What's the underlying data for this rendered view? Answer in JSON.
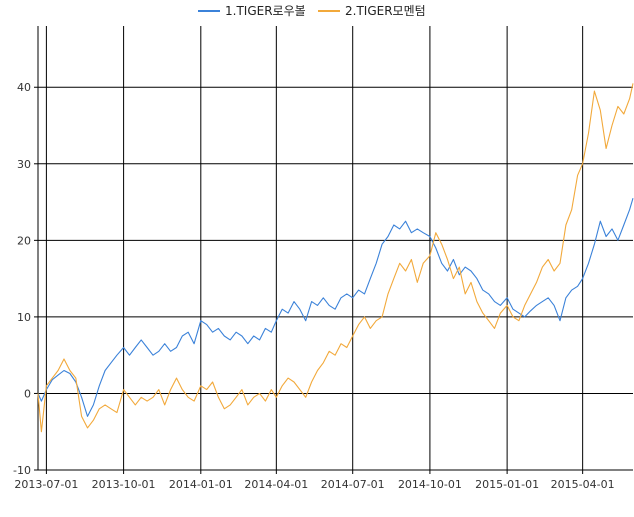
{
  "chart_data": {
    "type": "line",
    "title": "",
    "xlabel": "",
    "ylabel": "",
    "x_ticks": [
      "2013-07-01",
      "2013-10-01",
      "2014-01-01",
      "2014-04-01",
      "2014-07-01",
      "2014-10-01",
      "2015-01-01",
      "2015-04-01"
    ],
    "y_ticks": [
      -10,
      0,
      10,
      20,
      30,
      40
    ],
    "xlim": [
      "2013-06-21",
      "2015-05-31"
    ],
    "ylim": [
      -10,
      48
    ],
    "grid": true,
    "legend_position": "top",
    "series": [
      {
        "name": "1.TIGER로우볼",
        "color": "#3b82d9",
        "points": [
          [
            "2013-06-21",
            0.0
          ],
          [
            "2013-06-25",
            -1.0
          ],
          [
            "2013-07-01",
            0.5
          ],
          [
            "2013-07-08",
            1.8
          ],
          [
            "2013-07-15",
            2.4
          ],
          [
            "2013-07-22",
            3.0
          ],
          [
            "2013-07-29",
            2.6
          ],
          [
            "2013-08-05",
            1.5
          ],
          [
            "2013-08-12",
            -0.5
          ],
          [
            "2013-08-19",
            -3.0
          ],
          [
            "2013-08-26",
            -1.5
          ],
          [
            "2013-09-02",
            1.0
          ],
          [
            "2013-09-09",
            3.0
          ],
          [
            "2013-09-16",
            4.0
          ],
          [
            "2013-09-23",
            5.0
          ],
          [
            "2013-10-01",
            6.0
          ],
          [
            "2013-10-08",
            5.0
          ],
          [
            "2013-10-15",
            6.0
          ],
          [
            "2013-10-22",
            7.0
          ],
          [
            "2013-10-29",
            6.0
          ],
          [
            "2013-11-05",
            5.0
          ],
          [
            "2013-11-12",
            5.5
          ],
          [
            "2013-11-19",
            6.5
          ],
          [
            "2013-11-26",
            5.5
          ],
          [
            "2013-12-03",
            6.0
          ],
          [
            "2013-12-10",
            7.5
          ],
          [
            "2013-12-17",
            8.0
          ],
          [
            "2013-12-24",
            6.5
          ],
          [
            "2014-01-01",
            9.5
          ],
          [
            "2014-01-08",
            9.0
          ],
          [
            "2014-01-15",
            8.0
          ],
          [
            "2014-01-22",
            8.5
          ],
          [
            "2014-01-29",
            7.5
          ],
          [
            "2014-02-05",
            7.0
          ],
          [
            "2014-02-12",
            8.0
          ],
          [
            "2014-02-19",
            7.5
          ],
          [
            "2014-02-26",
            6.5
          ],
          [
            "2014-03-05",
            7.5
          ],
          [
            "2014-03-12",
            7.0
          ],
          [
            "2014-03-19",
            8.5
          ],
          [
            "2014-03-26",
            8.0
          ],
          [
            "2014-04-01",
            9.5
          ],
          [
            "2014-04-08",
            11.0
          ],
          [
            "2014-04-15",
            10.5
          ],
          [
            "2014-04-22",
            12.0
          ],
          [
            "2014-04-29",
            11.0
          ],
          [
            "2014-05-06",
            9.5
          ],
          [
            "2014-05-13",
            12.0
          ],
          [
            "2014-05-20",
            11.5
          ],
          [
            "2014-05-27",
            12.5
          ],
          [
            "2014-06-03",
            11.5
          ],
          [
            "2014-06-10",
            11.0
          ],
          [
            "2014-06-17",
            12.5
          ],
          [
            "2014-06-24",
            13.0
          ],
          [
            "2014-07-01",
            12.5
          ],
          [
            "2014-07-08",
            13.5
          ],
          [
            "2014-07-15",
            13.0
          ],
          [
            "2014-07-22",
            15.0
          ],
          [
            "2014-07-29",
            17.0
          ],
          [
            "2014-08-05",
            19.5
          ],
          [
            "2014-08-12",
            20.5
          ],
          [
            "2014-08-19",
            22.0
          ],
          [
            "2014-08-26",
            21.5
          ],
          [
            "2014-09-02",
            22.5
          ],
          [
            "2014-09-09",
            21.0
          ],
          [
            "2014-09-16",
            21.5
          ],
          [
            "2014-09-23",
            21.0
          ],
          [
            "2014-10-01",
            20.5
          ],
          [
            "2014-10-08",
            19.0
          ],
          [
            "2014-10-15",
            17.0
          ],
          [
            "2014-10-22",
            16.0
          ],
          [
            "2014-10-29",
            17.5
          ],
          [
            "2014-11-05",
            15.5
          ],
          [
            "2014-11-12",
            16.5
          ],
          [
            "2014-11-19",
            16.0
          ],
          [
            "2014-11-26",
            15.0
          ],
          [
            "2014-12-03",
            13.5
          ],
          [
            "2014-12-10",
            13.0
          ],
          [
            "2014-12-17",
            12.0
          ],
          [
            "2014-12-24",
            11.5
          ],
          [
            "2015-01-01",
            12.5
          ],
          [
            "2015-01-08",
            11.0
          ],
          [
            "2015-01-15",
            10.5
          ],
          [
            "2015-01-22",
            10.0
          ],
          [
            "2015-01-29",
            10.8
          ],
          [
            "2015-02-05",
            11.5
          ],
          [
            "2015-02-12",
            12.0
          ],
          [
            "2015-02-19",
            12.5
          ],
          [
            "2015-02-26",
            11.5
          ],
          [
            "2015-03-05",
            9.5
          ],
          [
            "2015-03-12",
            12.5
          ],
          [
            "2015-03-19",
            13.5
          ],
          [
            "2015-03-26",
            14.0
          ],
          [
            "2015-04-01",
            15.0
          ],
          [
            "2015-04-08",
            17.0
          ],
          [
            "2015-04-15",
            19.5
          ],
          [
            "2015-04-22",
            22.5
          ],
          [
            "2015-04-29",
            20.5
          ],
          [
            "2015-05-06",
            21.5
          ],
          [
            "2015-05-13",
            20.0
          ],
          [
            "2015-05-20",
            22.0
          ],
          [
            "2015-05-27",
            24.0
          ],
          [
            "2015-05-31",
            25.5
          ]
        ]
      },
      {
        "name": "2.TIGER모멘텀",
        "color": "#f2a93b",
        "points": [
          [
            "2013-06-21",
            0.0
          ],
          [
            "2013-06-25",
            -5.0
          ],
          [
            "2013-07-01",
            1.0
          ],
          [
            "2013-07-08",
            2.0
          ],
          [
            "2013-07-15",
            3.0
          ],
          [
            "2013-07-22",
            4.5
          ],
          [
            "2013-07-29",
            3.0
          ],
          [
            "2013-08-05",
            2.0
          ],
          [
            "2013-08-12",
            -3.0
          ],
          [
            "2013-08-19",
            -4.5
          ],
          [
            "2013-08-26",
            -3.5
          ],
          [
            "2013-09-02",
            -2.0
          ],
          [
            "2013-09-09",
            -1.5
          ],
          [
            "2013-09-16",
            -2.0
          ],
          [
            "2013-09-23",
            -2.5
          ],
          [
            "2013-10-01",
            0.5
          ],
          [
            "2013-10-08",
            -0.5
          ],
          [
            "2013-10-15",
            -1.5
          ],
          [
            "2013-10-22",
            -0.5
          ],
          [
            "2013-10-29",
            -1.0
          ],
          [
            "2013-11-05",
            -0.5
          ],
          [
            "2013-11-12",
            0.5
          ],
          [
            "2013-11-19",
            -1.5
          ],
          [
            "2013-11-26",
            0.5
          ],
          [
            "2013-12-03",
            2.0
          ],
          [
            "2013-12-10",
            0.5
          ],
          [
            "2013-12-17",
            -0.5
          ],
          [
            "2013-12-24",
            -1.0
          ],
          [
            "2014-01-01",
            1.0
          ],
          [
            "2014-01-08",
            0.5
          ],
          [
            "2014-01-15",
            1.5
          ],
          [
            "2014-01-22",
            -0.5
          ],
          [
            "2014-01-29",
            -2.0
          ],
          [
            "2014-02-05",
            -1.5
          ],
          [
            "2014-02-12",
            -0.5
          ],
          [
            "2014-02-19",
            0.5
          ],
          [
            "2014-02-26",
            -1.5
          ],
          [
            "2014-03-05",
            -0.5
          ],
          [
            "2014-03-12",
            0.0
          ],
          [
            "2014-03-19",
            -1.0
          ],
          [
            "2014-03-26",
            0.5
          ],
          [
            "2014-04-01",
            -0.5
          ],
          [
            "2014-04-08",
            1.0
          ],
          [
            "2014-04-15",
            2.0
          ],
          [
            "2014-04-22",
            1.5
          ],
          [
            "2014-04-29",
            0.5
          ],
          [
            "2014-05-06",
            -0.5
          ],
          [
            "2014-05-13",
            1.5
          ],
          [
            "2014-05-20",
            3.0
          ],
          [
            "2014-05-27",
            4.0
          ],
          [
            "2014-06-03",
            5.5
          ],
          [
            "2014-06-10",
            5.0
          ],
          [
            "2014-06-17",
            6.5
          ],
          [
            "2014-06-24",
            6.0
          ],
          [
            "2014-07-01",
            7.5
          ],
          [
            "2014-07-08",
            9.0
          ],
          [
            "2014-07-15",
            10.0
          ],
          [
            "2014-07-22",
            8.5
          ],
          [
            "2014-07-29",
            9.5
          ],
          [
            "2014-08-05",
            10.0
          ],
          [
            "2014-08-12",
            13.0
          ],
          [
            "2014-08-19",
            15.0
          ],
          [
            "2014-08-26",
            17.0
          ],
          [
            "2014-09-02",
            16.0
          ],
          [
            "2014-09-09",
            17.5
          ],
          [
            "2014-09-16",
            14.5
          ],
          [
            "2014-09-23",
            17.0
          ],
          [
            "2014-10-01",
            18.0
          ],
          [
            "2014-10-08",
            21.0
          ],
          [
            "2014-10-15",
            19.5
          ],
          [
            "2014-10-22",
            17.5
          ],
          [
            "2014-10-29",
            15.0
          ],
          [
            "2014-11-05",
            16.5
          ],
          [
            "2014-11-12",
            13.0
          ],
          [
            "2014-11-19",
            14.5
          ],
          [
            "2014-11-26",
            12.0
          ],
          [
            "2014-12-03",
            10.5
          ],
          [
            "2014-12-10",
            9.5
          ],
          [
            "2014-12-17",
            8.5
          ],
          [
            "2014-12-24",
            10.5
          ],
          [
            "2015-01-01",
            11.5
          ],
          [
            "2015-01-08",
            10.0
          ],
          [
            "2015-01-15",
            9.5
          ],
          [
            "2015-01-22",
            11.5
          ],
          [
            "2015-01-29",
            13.0
          ],
          [
            "2015-02-05",
            14.5
          ],
          [
            "2015-02-12",
            16.5
          ],
          [
            "2015-02-19",
            17.5
          ],
          [
            "2015-02-26",
            16.0
          ],
          [
            "2015-03-05",
            17.0
          ],
          [
            "2015-03-12",
            22.0
          ],
          [
            "2015-03-19",
            24.0
          ],
          [
            "2015-03-26",
            28.5
          ],
          [
            "2015-04-01",
            30.0
          ],
          [
            "2015-04-08",
            34.0
          ],
          [
            "2015-04-15",
            39.5
          ],
          [
            "2015-04-22",
            37.0
          ],
          [
            "2015-04-29",
            32.0
          ],
          [
            "2015-05-06",
            35.0
          ],
          [
            "2015-05-13",
            37.5
          ],
          [
            "2015-05-20",
            36.5
          ],
          [
            "2015-05-27",
            38.5
          ],
          [
            "2015-05-31",
            40.5
          ]
        ]
      }
    ]
  }
}
